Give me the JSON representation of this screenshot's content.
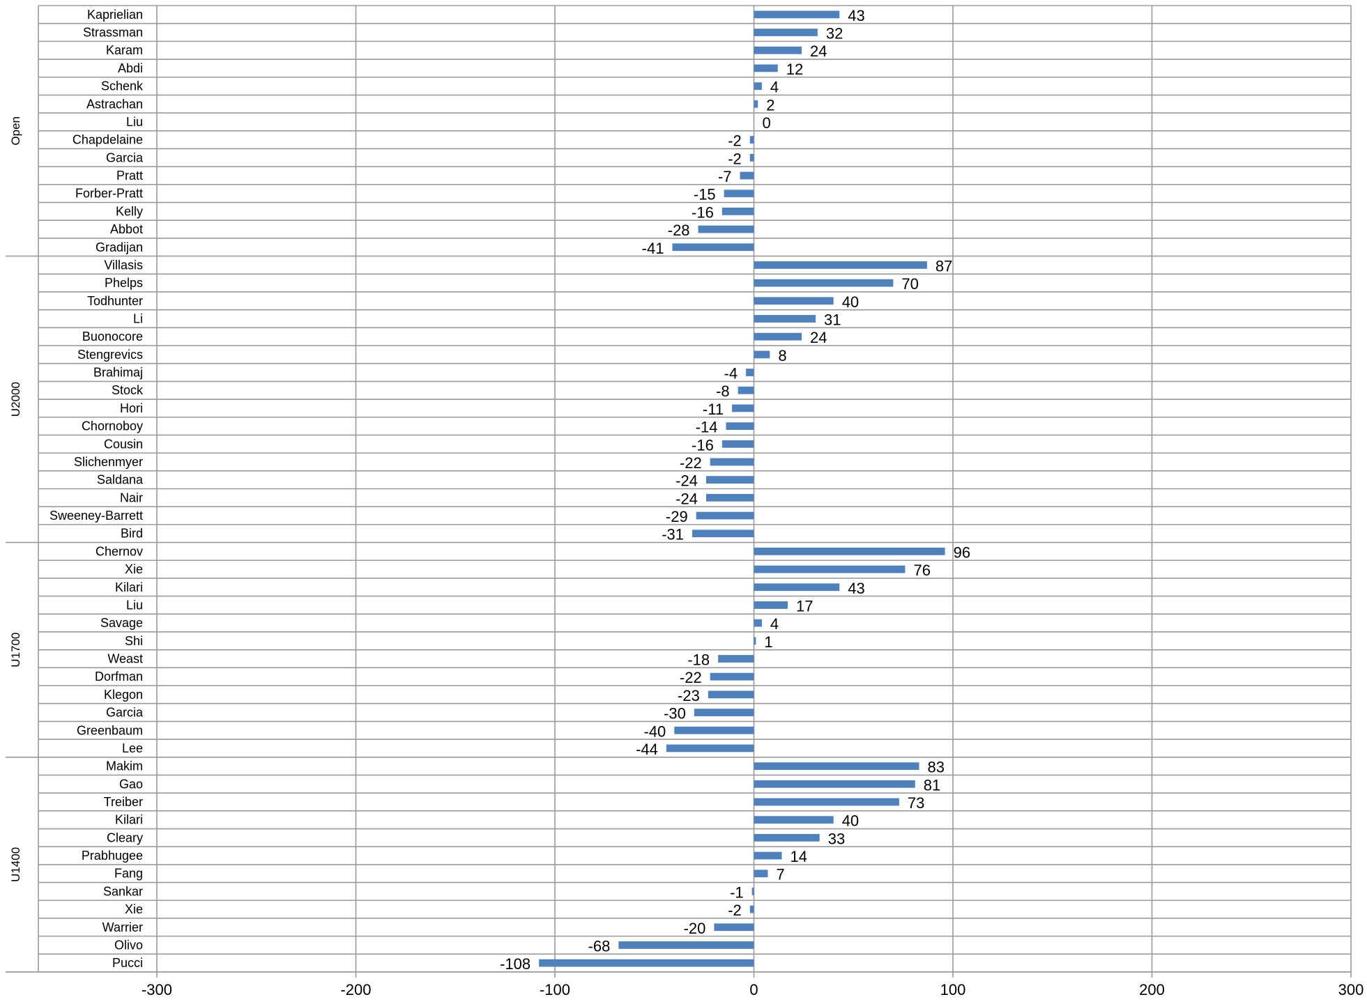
{
  "chart_data": {
    "type": "bar",
    "orientation": "horizontal",
    "grid": true,
    "legend": "none",
    "colors": {
      "bar": "#4f81bd",
      "grid": "#9a9a9a",
      "text": "#000000"
    },
    "xlim": [
      -300,
      300
    ],
    "xticks": [
      -300,
      -200,
      -100,
      0,
      100,
      200,
      300
    ],
    "groups": [
      {
        "name": "Open",
        "items": [
          {
            "label": "Kaprielian",
            "value": 43
          },
          {
            "label": "Strassman",
            "value": 32
          },
          {
            "label": "Karam",
            "value": 24
          },
          {
            "label": "Abdi",
            "value": 12
          },
          {
            "label": "Schenk",
            "value": 4
          },
          {
            "label": "Astrachan",
            "value": 2
          },
          {
            "label": "Liu",
            "value": 0
          },
          {
            "label": "Chapdelaine",
            "value": -2
          },
          {
            "label": "Garcia",
            "value": -2
          },
          {
            "label": "Pratt",
            "value": -7
          },
          {
            "label": "Forber-Pratt",
            "value": -15
          },
          {
            "label": "Kelly",
            "value": -16
          },
          {
            "label": "Abbot",
            "value": -28
          },
          {
            "label": "Gradijan",
            "value": -41
          }
        ]
      },
      {
        "name": "U2000",
        "items": [
          {
            "label": "Villasis",
            "value": 87
          },
          {
            "label": "Phelps",
            "value": 70
          },
          {
            "label": "Todhunter",
            "value": 40
          },
          {
            "label": "Li",
            "value": 31
          },
          {
            "label": "Buonocore",
            "value": 24
          },
          {
            "label": "Stengrevics",
            "value": 8
          },
          {
            "label": "Brahimaj",
            "value": -4
          },
          {
            "label": "Stock",
            "value": -8
          },
          {
            "label": "Hori",
            "value": -11
          },
          {
            "label": "Chornoboy",
            "value": -14
          },
          {
            "label": "Cousin",
            "value": -16
          },
          {
            "label": "Slichenmyer",
            "value": -22
          },
          {
            "label": "Saldana",
            "value": -24
          },
          {
            "label": "Nair",
            "value": -24
          },
          {
            "label": "Sweeney-Barrett",
            "value": -29
          },
          {
            "label": "Bird",
            "value": -31
          }
        ]
      },
      {
        "name": "U1700",
        "items": [
          {
            "label": "Chernov",
            "value": 96
          },
          {
            "label": "Xie",
            "value": 76
          },
          {
            "label": "Kilari",
            "value": 43
          },
          {
            "label": "Liu",
            "value": 17
          },
          {
            "label": "Savage",
            "value": 4
          },
          {
            "label": "Shi",
            "value": 1
          },
          {
            "label": "Weast",
            "value": -18
          },
          {
            "label": "Dorfman",
            "value": -22
          },
          {
            "label": "Klegon",
            "value": -23
          },
          {
            "label": "Garcia",
            "value": -30
          },
          {
            "label": "Greenbaum",
            "value": -40
          },
          {
            "label": "Lee",
            "value": -44
          }
        ]
      },
      {
        "name": "U1400",
        "items": [
          {
            "label": "Makim",
            "value": 83
          },
          {
            "label": "Gao",
            "value": 81
          },
          {
            "label": "Treiber",
            "value": 73
          },
          {
            "label": "Kilari",
            "value": 40
          },
          {
            "label": "Cleary",
            "value": 33
          },
          {
            "label": "Prabhugee",
            "value": 14
          },
          {
            "label": "Fang",
            "value": 7
          },
          {
            "label": "Sankar",
            "value": -1
          },
          {
            "label": "Xie",
            "value": -2
          },
          {
            "label": "Warrier",
            "value": -20
          },
          {
            "label": "Olivo",
            "value": -68
          },
          {
            "label": "Pucci",
            "value": -108
          }
        ]
      }
    ]
  }
}
